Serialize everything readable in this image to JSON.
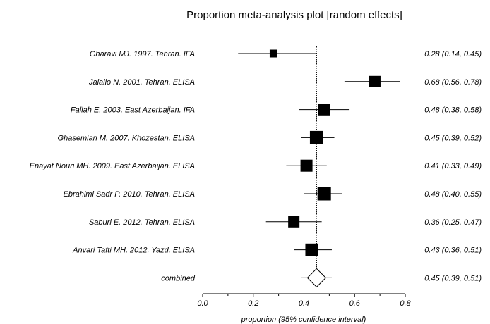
{
  "chart_data": {
    "type": "forest",
    "title": "Proportion meta-analysis plot [random effects]",
    "xlabel": "proportion (95% confidence interval)",
    "xlim": [
      0.0,
      0.8
    ],
    "xticks": [
      "0.0",
      "0.2",
      "0.4",
      "0.6",
      "0.8"
    ],
    "pooled_reference_line": 0.45,
    "studies": [
      {
        "label": "Gharavi MJ. 1997. Tehran. IFA",
        "estimate": 0.28,
        "lower": 0.14,
        "upper": 0.45,
        "ci_text": "0.28 (0.14, 0.45)",
        "weight": 0.55
      },
      {
        "label": "Jalallo N. 2001. Tehran. ELISA",
        "estimate": 0.68,
        "lower": 0.56,
        "upper": 0.78,
        "ci_text": "0.68 (0.56, 0.78)",
        "weight": 0.8
      },
      {
        "label": "Fallah E. 2003. East Azerbaijan. IFA",
        "estimate": 0.48,
        "lower": 0.38,
        "upper": 0.58,
        "ci_text": "0.48 (0.38, 0.58)",
        "weight": 0.82
      },
      {
        "label": "Ghasemian M. 2007. Khozestan. ELISA",
        "estimate": 0.45,
        "lower": 0.39,
        "upper": 0.52,
        "ci_text": "0.45 (0.39, 0.52)",
        "weight": 0.95
      },
      {
        "label": "Enayat Nouri MH. 2009. East Azerbaijan. ELISA",
        "estimate": 0.41,
        "lower": 0.33,
        "upper": 0.49,
        "ci_text": "0.41 (0.33, 0.49)",
        "weight": 0.85
      },
      {
        "label": "Ebrahimi Sadr P. 2010. Tehran. ELISA",
        "estimate": 0.48,
        "lower": 0.4,
        "upper": 0.55,
        "ci_text": "0.48 (0.40, 0.55)",
        "weight": 0.95
      },
      {
        "label": "Saburi E. 2012. Tehran. ELISA",
        "estimate": 0.36,
        "lower": 0.25,
        "upper": 0.47,
        "ci_text": "0.36 (0.25, 0.47)",
        "weight": 0.8
      },
      {
        "label": "Anvari Tafti MH. 2012. Yazd. ELISA",
        "estimate": 0.43,
        "lower": 0.36,
        "upper": 0.51,
        "ci_text": "0.43 (0.36, 0.51)",
        "weight": 0.88
      }
    ],
    "combined": {
      "label": "combined",
      "estimate": 0.45,
      "lower": 0.39,
      "upper": 0.51,
      "ci_text": "0.45 (0.39, 0.51)"
    },
    "marker_color": "#000000",
    "line_color": "#000000"
  }
}
